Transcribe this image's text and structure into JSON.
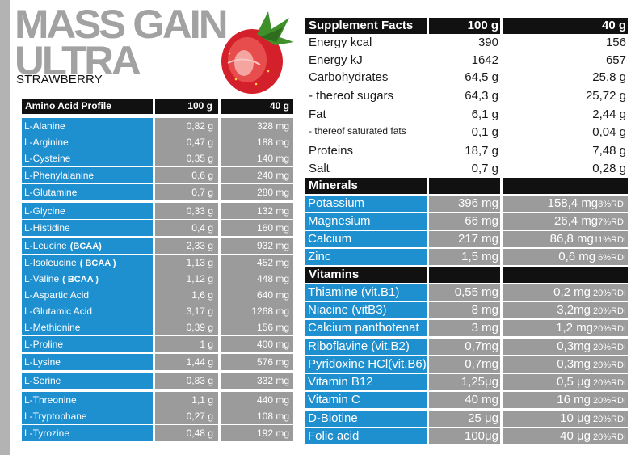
{
  "brand": {
    "line1": "MASS GAIN",
    "line2": "ULTRA",
    "flavor": "STRAWBERRY"
  },
  "amino": {
    "headers": [
      "Amino Acid Profile",
      "100 g",
      "40 g"
    ],
    "rows": [
      {
        "name": "L-Alanine",
        "tag": "",
        "v100": "0,82 g",
        "v40": "328 mg"
      },
      {
        "name": "L-Arginine",
        "tag": "",
        "v100": "0,47 g",
        "v40": "188 mg"
      },
      {
        "name": "L-Cysteine",
        "tag": "",
        "v100": "0,35 g",
        "v40": "140 mg"
      },
      {
        "name": "L-Phenylalanine",
        "tag": "",
        "v100": "0,6 g",
        "v40": "240 mg"
      },
      {
        "name": "L-Glutamine",
        "tag": "",
        "v100": "0,7 g",
        "v40": "280 mg"
      },
      {
        "name": "L-Glycine",
        "tag": "",
        "v100": "0,33 g",
        "v40": "132 mg"
      },
      {
        "name": "L-Histidine",
        "tag": "",
        "v100": "0,4 g",
        "v40": "160 mg"
      },
      {
        "name": "L-Leucine",
        "tag": "(BCAA)",
        "v100": "2,33 g",
        "v40": "932 mg"
      },
      {
        "name": "L-Isoleucine",
        "tag": "( BCAA )",
        "v100": "1,13 g",
        "v40": "452 mg"
      },
      {
        "name": "L-Valine",
        "tag": "( BCAA )",
        "v100": "1,12 g",
        "v40": "448 mg"
      },
      {
        "name": "L-Aspartic Acid",
        "tag": "",
        "v100": "1,6 g",
        "v40": "640 mg"
      },
      {
        "name": "L-Glutamic Acid",
        "tag": "",
        "v100": "3,17 g",
        "v40": "1268 mg"
      },
      {
        "name": "L-Methionine",
        "tag": "",
        "v100": "0,39 g",
        "v40": "156 mg"
      },
      {
        "name": "L-Proline",
        "tag": "",
        "v100": "1 g",
        "v40": "400 mg"
      },
      {
        "name": "L-Lysine",
        "tag": "",
        "v100": "1,44 g",
        "v40": "576 mg"
      },
      {
        "name": "L-Serine",
        "tag": "",
        "v100": "0,83 g",
        "v40": "332 mg"
      },
      {
        "name": "L-Threonine",
        "tag": "",
        "v100": "1,1 g",
        "v40": "440 mg"
      },
      {
        "name": "L-Tryptophane",
        "tag": "",
        "v100": "0,27 g",
        "v40": "108 mg"
      },
      {
        "name": "L-Tyrozine",
        "tag": "",
        "v100": "0,48 g",
        "v40": "192 mg"
      }
    ]
  },
  "facts": {
    "headers": [
      "Supplement Facts",
      "100 g",
      "40 g"
    ],
    "nutrients": [
      {
        "name": "Energy  kcal",
        "v100": "390",
        "v40": "156",
        "small": false
      },
      {
        "name": "Energy  kJ",
        "v100": "1642",
        "v40": "657",
        "small": false
      },
      {
        "name": "Carbohydrates",
        "v100": "64,5 g",
        "v40": "25,8 g",
        "small": false
      },
      {
        "name": "- thereof sugars",
        "v100": "64,3 g",
        "v40": "25,72 g",
        "small": false
      },
      {
        "name": "Fat",
        "v100": "6,1 g",
        "v40": "2,44 g",
        "small": false
      },
      {
        "name": "- thereof saturated fats",
        "v100": "0,1 g",
        "v40": "0,04 g",
        "small": true
      },
      {
        "name": "Proteins",
        "v100": "18,7 g",
        "v40": "7,48 g",
        "small": false
      },
      {
        "name": "Salt",
        "v100": "0,7 g",
        "v40": "0,28 g",
        "small": false
      }
    ],
    "minerals_label": "Minerals",
    "minerals": [
      {
        "name": "Potassium",
        "v100": "396 mg",
        "v40": "158,4 mg",
        "rdi": "8%RDI"
      },
      {
        "name": "Magnesium",
        "v100": "66 mg",
        "v40": "26,4 mg",
        "rdi": "7%RDI"
      },
      {
        "name": "Calcium",
        "v100": "217 mg",
        "v40": "86,8 mg",
        "rdi": "11%RDI"
      },
      {
        "name": "Zinc",
        "v100": "1,5 mg",
        "v40": "0,6 mg",
        "rdi": " 6%RDI"
      }
    ],
    "vitamins_label": "Vitamins",
    "vitamins": [
      {
        "name": "Thiamine (vit.B1)",
        "v100": "0,55 mg",
        "v40": "0,2 mg",
        "rdi": " 20%RDI"
      },
      {
        "name": "Niacine (vitB3)",
        "v100": "8 mg",
        "v40": "3,2mg",
        "rdi": " 20%RDI"
      },
      {
        "name": "Calcium panthotenat",
        "v100": "3 mg",
        "v40": "1,2 mg",
        "rdi": "20%RDI"
      },
      {
        "name": "Riboflavine (vit.B2)",
        "v100": "0,7mg",
        "v40": "0,3mg",
        "rdi": " 20%RDI"
      },
      {
        "name": "Pyridoxine HCl(vit.B6)",
        "v100": "0,7mg",
        "v40": "0,3mg",
        "rdi": " 20%RDI"
      },
      {
        "name": "Vitamin B12",
        "v100": "1,25μg",
        "v40": "0,5 μg",
        "rdi": " 20%RDI"
      },
      {
        "name": "Vitamin C",
        "v100": "40 mg",
        "v40": "16 mg",
        "rdi": " 20%RDI"
      },
      {
        "name": "D-Biotine",
        "v100": "25 μg",
        "v40": "10 μg",
        "rdi": " 20%RDI"
      },
      {
        "name": "Folic acid",
        "v100": "100μg",
        "v40": "40 μg",
        "rdi": " 20%RDI"
      }
    ]
  },
  "colors": {
    "blue": "#1e8fcf",
    "gray": "#9b9b9b",
    "black": "#111111",
    "brand_gray": "#a2a2a2"
  }
}
